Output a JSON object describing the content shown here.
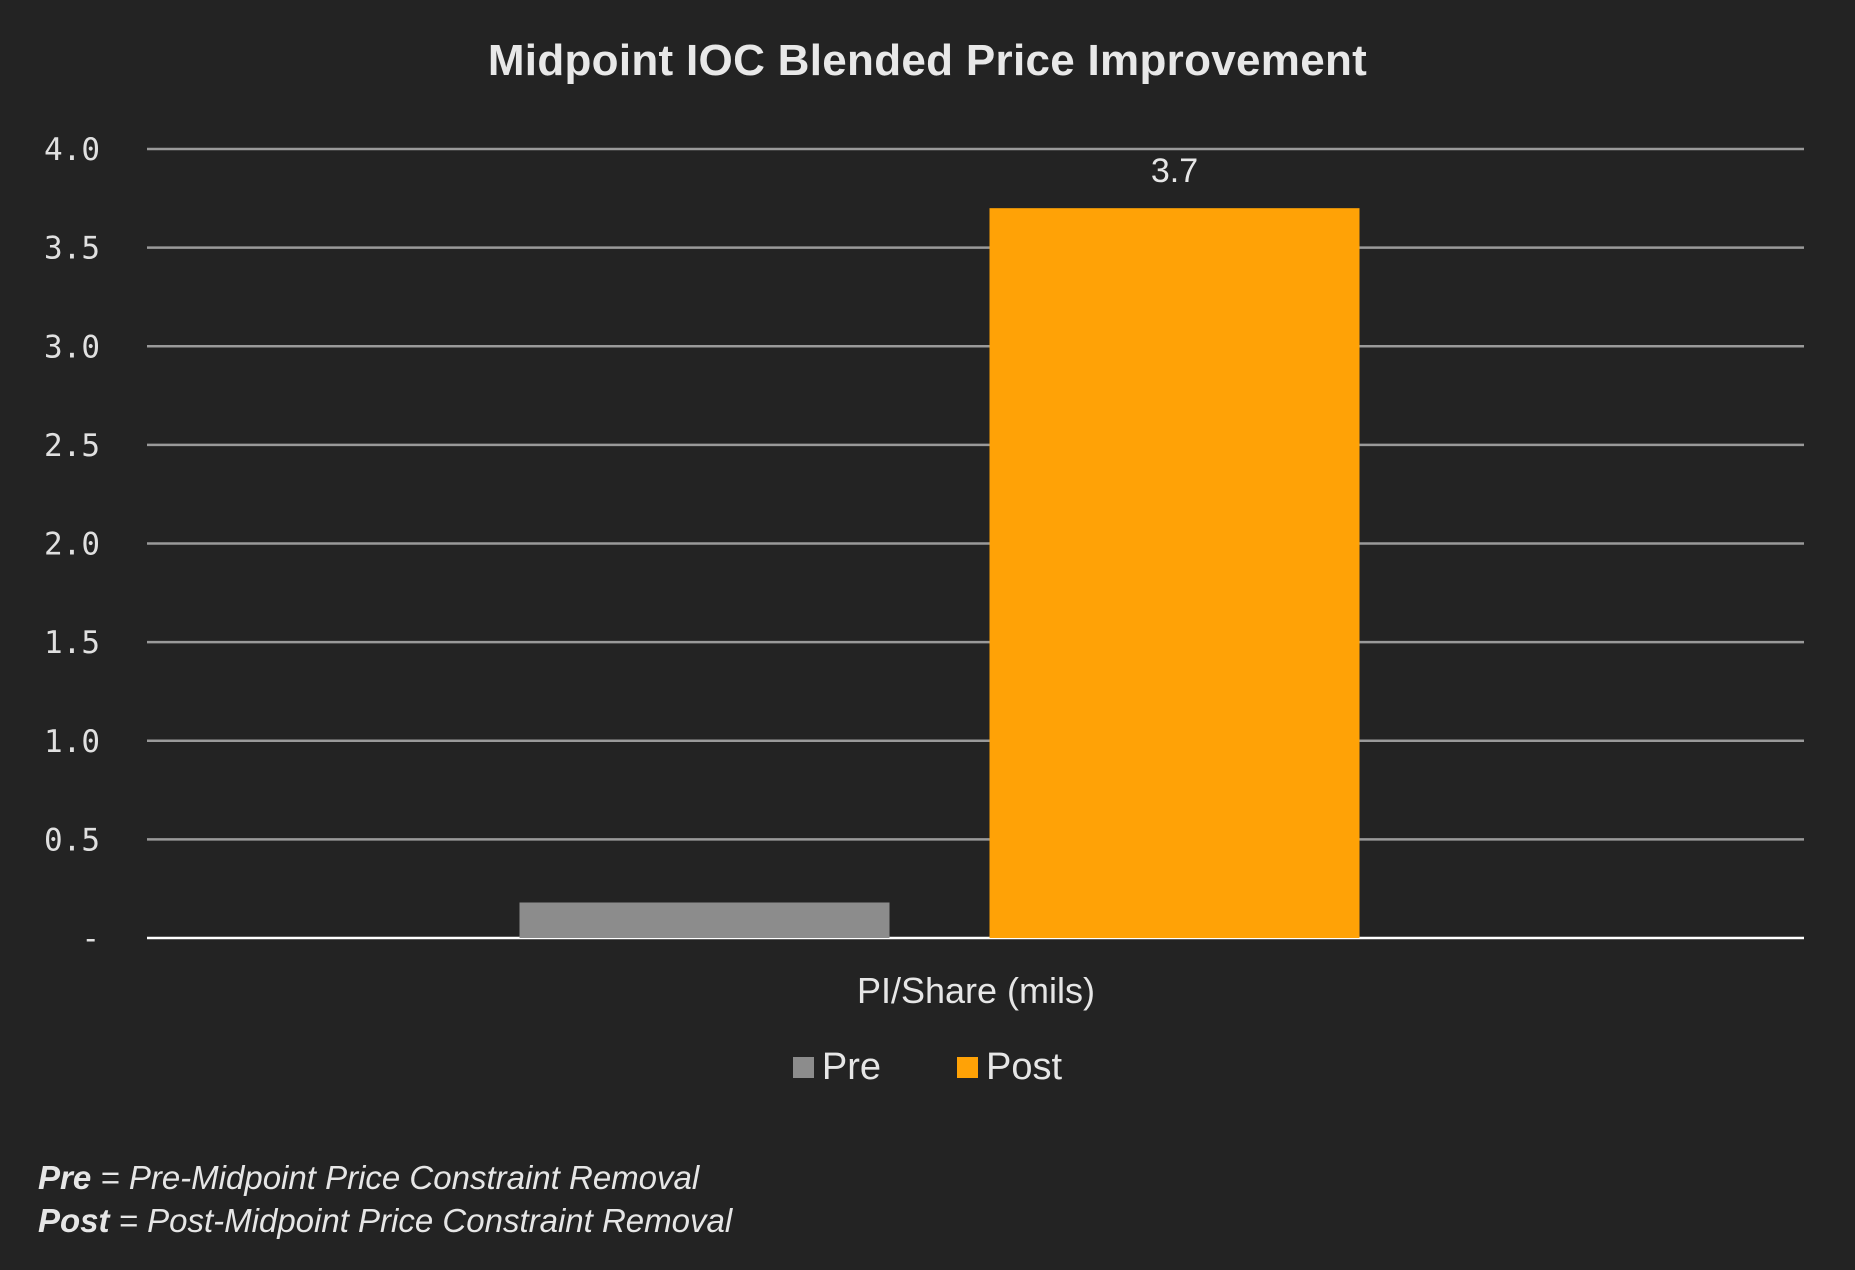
{
  "chart_data": {
    "type": "bar",
    "title": "Midpoint IOC Blended Price Improvement",
    "categories": [
      "PI/Share (mils)"
    ],
    "series": [
      {
        "name": "Pre",
        "values": [
          0.18
        ],
        "color": "#8c8c8c"
      },
      {
        "name": "Post",
        "values": [
          3.7
        ],
        "color": "#ffa206"
      }
    ],
    "data_labels": {
      "Post": "3.7"
    },
    "xlabel": "",
    "ylabel": "",
    "ylim": [
      0,
      4.0
    ],
    "yticks": [
      {
        "value": 0,
        "label": "-"
      },
      {
        "value": 0.5,
        "label": "0.5"
      },
      {
        "value": 1.0,
        "label": "1.0"
      },
      {
        "value": 1.5,
        "label": "1.5"
      },
      {
        "value": 2.0,
        "label": "2.0"
      },
      {
        "value": 2.5,
        "label": "2.5"
      },
      {
        "value": 3.0,
        "label": "3.0"
      },
      {
        "value": 3.5,
        "label": "3.5"
      },
      {
        "value": 4.0,
        "label": "4.0"
      }
    ],
    "grid": true,
    "legend_position": "bottom-center"
  },
  "notes": [
    {
      "term": "Pre",
      "text": " = Pre-Midpoint Price Constraint Removal"
    },
    {
      "term": "Post",
      "text": " = Post-Midpoint Price Constraint Removal"
    }
  ],
  "colors": {
    "background": "#232323",
    "gridline": "#9a9a9a",
    "baseline": "#ffffff"
  }
}
